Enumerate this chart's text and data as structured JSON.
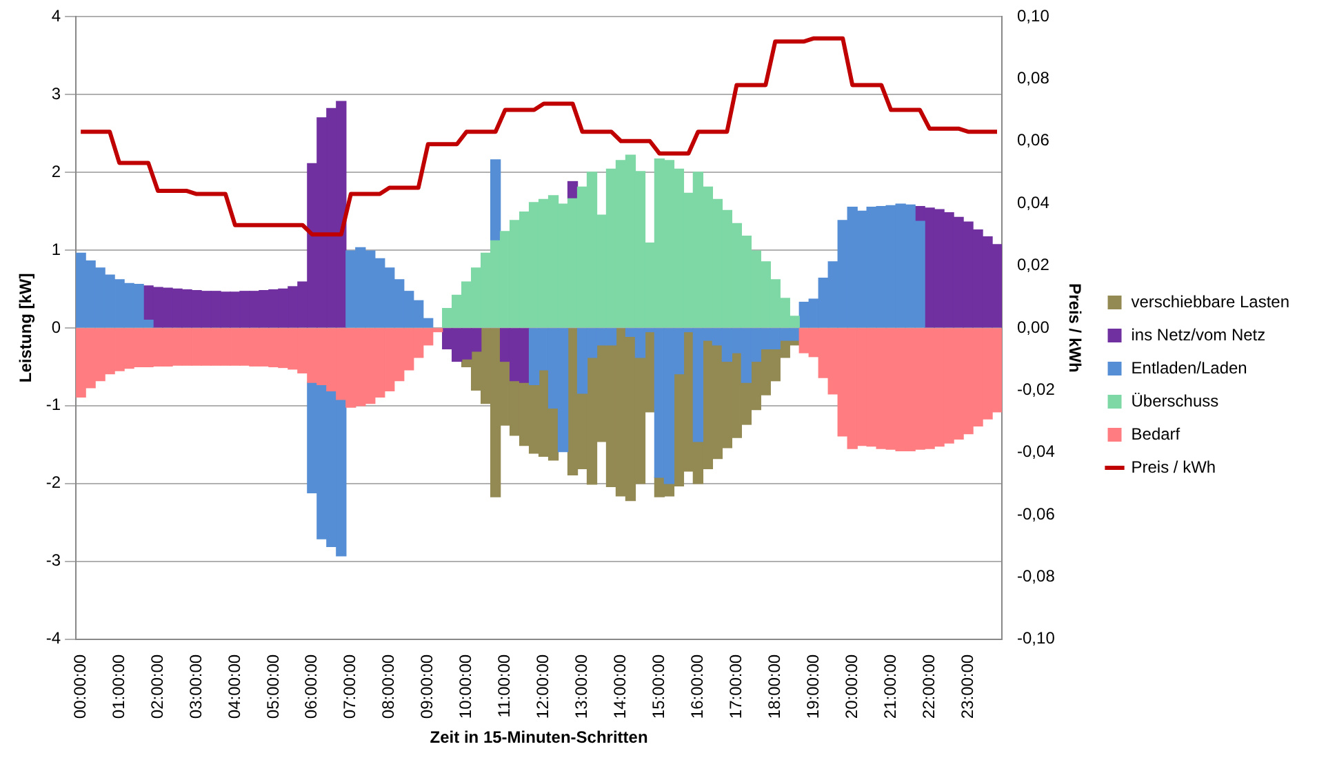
{
  "chart_data": {
    "type": "bar",
    "stacked": true,
    "xlabel": "Zeit in 15-Minuten-Schritten",
    "ylabel": "Leistung [kW]",
    "y2label": "Preis / kWh",
    "categories": [
      "00:00:00",
      null,
      null,
      null,
      "01:00:00",
      null,
      null,
      null,
      "02:00:00",
      null,
      null,
      null,
      "03:00:00",
      null,
      null,
      null,
      "04:00:00",
      null,
      null,
      null,
      "05:00:00",
      null,
      null,
      null,
      "06:00:00",
      null,
      null,
      null,
      "07:00:00",
      null,
      null,
      null,
      "08:00:00",
      null,
      null,
      null,
      "09:00:00",
      null,
      null,
      null,
      "10:00:00",
      null,
      null,
      null,
      "11:00:00",
      null,
      null,
      null,
      "12:00:00",
      null,
      null,
      null,
      "13:00:00",
      null,
      null,
      null,
      "14:00:00",
      null,
      null,
      null,
      "15:00:00",
      null,
      null,
      null,
      "16:00:00",
      null,
      null,
      null,
      "17:00:00",
      null,
      null,
      null,
      "18:00:00",
      null,
      null,
      null,
      "19:00:00",
      null,
      null,
      null,
      "20:00:00",
      null,
      null,
      null,
      "21:00:00",
      null,
      null,
      null,
      "22:00:00",
      null,
      null,
      null,
      "23:00:00",
      null,
      null,
      null
    ],
    "series": [
      {
        "name": "Bedarf",
        "color": "#ff7c80",
        "values": [
          -0.89,
          -0.77,
          -0.68,
          -0.59,
          -0.55,
          -0.52,
          -0.5,
          -0.5,
          -0.49,
          -0.49,
          -0.48,
          -0.48,
          -0.48,
          -0.48,
          -0.48,
          -0.48,
          -0.48,
          -0.48,
          -0.49,
          -0.49,
          -0.5,
          -0.51,
          -0.53,
          -0.58,
          -0.7,
          -0.73,
          -0.81,
          -0.92,
          -1.02,
          -1.0,
          -0.97,
          -0.89,
          -0.81,
          -0.68,
          -0.54,
          -0.38,
          -0.22,
          -0.05,
          null,
          null,
          null,
          null,
          null,
          null,
          null,
          null,
          null,
          null,
          null,
          null,
          null,
          null,
          null,
          null,
          null,
          null,
          null,
          null,
          null,
          null,
          null,
          null,
          null,
          null,
          null,
          null,
          null,
          null,
          null,
          null,
          null,
          null,
          null,
          null,
          null,
          -0.32,
          -0.37,
          -0.64,
          -0.85,
          -1.39,
          -1.55,
          -1.51,
          -1.52,
          -1.55,
          -1.56,
          -1.58,
          -1.58,
          -1.56,
          -1.55,
          -1.52,
          -1.48,
          -1.43,
          -1.36,
          -1.26,
          -1.17,
          -1.08
        ]
      },
      {
        "name": "Überschuss",
        "color": "#7dd8a5",
        "values": [
          null,
          null,
          null,
          null,
          null,
          null,
          null,
          null,
          null,
          null,
          null,
          null,
          null,
          null,
          null,
          null,
          null,
          null,
          null,
          null,
          null,
          null,
          null,
          null,
          null,
          null,
          null,
          null,
          null,
          null,
          null,
          null,
          null,
          null,
          null,
          null,
          null,
          null,
          0.25,
          0.42,
          0.59,
          0.77,
          0.96,
          1.12,
          1.24,
          1.38,
          1.49,
          1.61,
          1.65,
          1.7,
          1.59,
          1.66,
          1.81,
          2.0,
          1.45,
          2.04,
          2.15,
          2.22,
          2.01,
          1.09,
          2.17,
          2.15,
          2.04,
          1.73,
          2.0,
          1.81,
          1.65,
          1.51,
          1.34,
          1.18,
          0.99,
          0.85,
          0.62,
          0.38,
          0.15,
          null,
          null,
          null,
          null,
          null,
          null,
          null,
          null,
          null,
          null,
          null,
          null,
          null,
          null,
          null,
          null,
          null,
          null,
          null,
          null,
          null
        ]
      },
      {
        "name": "Entladen/Laden",
        "color": "#558ed5",
        "values": [
          0.96,
          0.86,
          0.77,
          0.68,
          0.62,
          0.57,
          0.56,
          0.1,
          null,
          null,
          null,
          null,
          null,
          null,
          null,
          null,
          null,
          null,
          null,
          null,
          null,
          null,
          null,
          null,
          -1.42,
          -1.98,
          -2.0,
          -2.01,
          0.99,
          1.03,
          0.99,
          0.89,
          0.77,
          0.62,
          0.47,
          0.35,
          0.12,
          null,
          null,
          null,
          null,
          null,
          null,
          1.04,
          null,
          null,
          null,
          -0.73,
          -0.54,
          -1.03,
          -1.59,
          null,
          -0.84,
          -0.38,
          -0.22,
          -0.22,
          null,
          -0.11,
          -0.38,
          -0.05,
          -1.92,
          -2.0,
          -0.59,
          -0.05,
          -1.46,
          -0.16,
          -0.22,
          -0.43,
          -0.32,
          -0.7,
          -0.43,
          -0.27,
          -0.27,
          -0.16,
          -0.16,
          0.33,
          0.37,
          0.64,
          0.85,
          1.38,
          1.55,
          1.5,
          1.55,
          1.56,
          1.57,
          1.59,
          1.58,
          1.37,
          null,
          null,
          null,
          null,
          null,
          null,
          null,
          null
        ]
      },
      {
        "name": "ins Netz/vom Netz",
        "color": "#7030a0",
        "values": [
          null,
          null,
          null,
          null,
          null,
          null,
          null,
          0.44,
          0.52,
          0.51,
          0.5,
          0.49,
          0.48,
          0.47,
          0.47,
          0.46,
          0.46,
          0.47,
          0.47,
          0.48,
          0.49,
          0.5,
          0.53,
          0.59,
          2.11,
          2.7,
          2.82,
          2.91,
          null,
          null,
          null,
          null,
          null,
          null,
          null,
          null,
          null,
          null,
          -0.27,
          -0.43,
          -0.4,
          -0.3,
          null,
          null,
          -0.43,
          -0.68,
          -0.7,
          null,
          null,
          null,
          null,
          0.22,
          null,
          null,
          null,
          null,
          null,
          null,
          null,
          null,
          null,
          null,
          null,
          null,
          null,
          null,
          null,
          null,
          null,
          null,
          null,
          null,
          null,
          null,
          null,
          null,
          null,
          null,
          null,
          null,
          null,
          null,
          null,
          null,
          null,
          null,
          null,
          0.19,
          1.54,
          1.52,
          1.48,
          1.42,
          1.36,
          1.26,
          1.17,
          1.07
        ]
      },
      {
        "name": "verschiebbare Lasten",
        "color": "#938953",
        "values": [
          null,
          null,
          null,
          null,
          null,
          null,
          null,
          null,
          null,
          null,
          null,
          null,
          null,
          null,
          null,
          null,
          null,
          null,
          null,
          null,
          null,
          null,
          null,
          null,
          null,
          null,
          null,
          null,
          null,
          null,
          null,
          null,
          null,
          null,
          null,
          null,
          null,
          null,
          null,
          null,
          -0.1,
          -0.5,
          -0.97,
          -2.17,
          -0.82,
          -0.7,
          -0.81,
          -0.88,
          -1.11,
          -0.67,
          null,
          -1.89,
          -0.97,
          -1.63,
          -1.24,
          -1.82,
          -2.16,
          -2.11,
          -1.62,
          -1.03,
          -0.25,
          -0.16,
          -1.44,
          -1.79,
          -0.54,
          -1.65,
          -1.46,
          -1.11,
          -1.09,
          -0.54,
          -0.62,
          -0.59,
          -0.41,
          -0.22,
          -0.06,
          null,
          null,
          null,
          null,
          null,
          null,
          null,
          null,
          null,
          null,
          null,
          null,
          null,
          null,
          null,
          null,
          null,
          null,
          null,
          null,
          null
        ]
      },
      {
        "name": "Preis / kWh",
        "type": "line",
        "axis": "y2",
        "color": "#c00000",
        "values": [
          0.063,
          0.063,
          0.063,
          0.063,
          0.053,
          0.053,
          0.053,
          0.053,
          0.044,
          0.044,
          0.044,
          0.044,
          0.043,
          0.043,
          0.043,
          0.043,
          0.033,
          0.033,
          0.033,
          0.033,
          0.033,
          0.033,
          0.033,
          0.033,
          0.03,
          0.03,
          0.03,
          0.03,
          0.043,
          0.043,
          0.043,
          0.043,
          0.045,
          0.045,
          0.045,
          0.045,
          0.059,
          0.059,
          0.059,
          0.059,
          0.063,
          0.063,
          0.063,
          0.063,
          0.07,
          0.07,
          0.07,
          0.07,
          0.072,
          0.072,
          0.072,
          0.072,
          0.063,
          0.063,
          0.063,
          0.063,
          0.06,
          0.06,
          0.06,
          0.06,
          0.056,
          0.056,
          0.056,
          0.056,
          0.063,
          0.063,
          0.063,
          0.063,
          0.078,
          0.078,
          0.078,
          0.078,
          0.092,
          0.092,
          0.092,
          0.092,
          0.093,
          0.093,
          0.093,
          0.093,
          0.078,
          0.078,
          0.078,
          0.078,
          0.07,
          0.07,
          0.07,
          0.07,
          0.064,
          0.064,
          0.064,
          0.064,
          0.063,
          0.063,
          0.063,
          0.063
        ]
      }
    ],
    "ylim": [
      -4,
      4
    ],
    "yticks": [
      -4,
      -3,
      -2,
      -1,
      0,
      1,
      2,
      3,
      4
    ],
    "y2lim": [
      -0.1,
      0.1
    ],
    "y2ticks": [
      {
        "value": -0.1,
        "label": "-0,10"
      },
      {
        "value": -0.08,
        "label": "-0,08"
      },
      {
        "value": -0.06,
        "label": "-0,06"
      },
      {
        "value": -0.04,
        "label": "-0,04"
      },
      {
        "value": -0.02,
        "label": "-0,02"
      },
      {
        "value": 0,
        "label": "0,00"
      },
      {
        "value": 0.02,
        "label": "0,02"
      },
      {
        "value": 0.04,
        "label": "0,04"
      },
      {
        "value": 0.06,
        "label": "0,06"
      },
      {
        "value": 0.08,
        "label": "0,08"
      },
      {
        "value": 0.1,
        "label": "0,10"
      }
    ],
    "grid": "y",
    "legend": "right",
    "marker": "none",
    "line_style": "solid"
  }
}
